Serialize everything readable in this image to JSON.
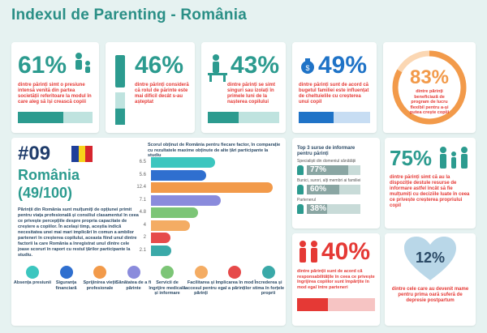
{
  "title": "Indexul de Parenting - România",
  "stats": [
    {
      "value": "61%",
      "text": "dintre părinți simt o presiune intensă venită din partea societății referitoare la modul în care aleg să își crească copiii",
      "fill": 0.61
    },
    {
      "value": "46%",
      "text": "dintre părinți consideră că rolul de părinte este mai dificil decât s-au așteptat",
      "fill": 0.46
    },
    {
      "value": "43%",
      "text": "dintre părinți se simt singuri sau izolați în primele luni de la nașterea copilului",
      "fill": 0.43
    },
    {
      "value": "49%",
      "text": "dintre părinți sunt de acord că bugetul familiei este influențat de cheltuielile cu creșterea unui copil",
      "fill": 0.49
    },
    {
      "value": "83%",
      "text": "dintre părinți beneficiază de program de lucru flexibil pentru a-și putea crește copiii",
      "fill": 0.83
    }
  ],
  "country": {
    "rank": "#09",
    "name": "România",
    "score": "(49/100)",
    "description": "Părinții din România sunt mulțumiți de opțiunei primit pentru viața profesională și consiliul clasamentul în ceea ce privește percepțiile despre propria capacitate de creștere a copiilor. În același timp, aceștia indică necesitatea unei mai mari implicări în comun a ambilor parteneri în creșterea copilului, aceasta fiind unul dintre factorii la care România a înregistrat unul dintre cele joase scoruri în raport cu restul țărilor participante la studiu."
  },
  "chart_note": "Scorul obținut de România pentru fiecare factor, în comparație cu rezultatele maxime obținute de alte țări participante la studiu",
  "chart_data": {
    "type": "bar",
    "categories": [
      "Absența presiunii",
      "Siguranța financiară",
      "Sprijinirea vieții profesionale",
      "Sănătatea de a fi părinte",
      "Servicii de îngrijire medicală și informare",
      "Facilitarea și accesul pentru părinți",
      "Implicarea în mod egal a părinților",
      "Încrederea și stima în forțele proprii"
    ],
    "values": [
      6.5,
      5.6,
      12.4,
      7.1,
      4.8,
      4,
      2,
      2.1
    ],
    "labels": [
      "6.5",
      "5.6",
      "12.4",
      "7.1",
      "4.8",
      "4",
      "2",
      "2.1"
    ],
    "colors": [
      "#3cc6bf",
      "#2f6fcf",
      "#f29a4a",
      "#8a8bdc",
      "#7cc576",
      "#f4ac63",
      "#e64a4a",
      "#3aa9a8"
    ]
  },
  "sources": {
    "heading": "Top 3 surse de informare pentru părinți",
    "items": [
      {
        "label": "Specialiști din domeniul sănătății",
        "value": "77%",
        "fill": 0.77
      },
      {
        "label": "Bunici, surori, alți membri ai familiei",
        "value": "60%",
        "fill": 0.6
      },
      {
        "label": "Partenerul",
        "value": "38%",
        "fill": 0.38
      }
    ]
  },
  "stat75": {
    "value": "75%",
    "text": "dintre părinți simt că au la dispoziție destule resurse de informare astfel încât să fie mulțumiți cu deciziile luate în ceea ce privește creșterea propriului copil"
  },
  "stat40": {
    "value": "40%",
    "text": "dintre părinții sunt de acord că responsabilitățile în ceea ce privește îngrijirea copiilor sunt împărțite în mod egal între parteneri",
    "fill": 0.4
  },
  "stat12": {
    "value": "12%",
    "text": "dintre cele care au devenit mame pentru prima oară suferă de depresie postpartum"
  }
}
